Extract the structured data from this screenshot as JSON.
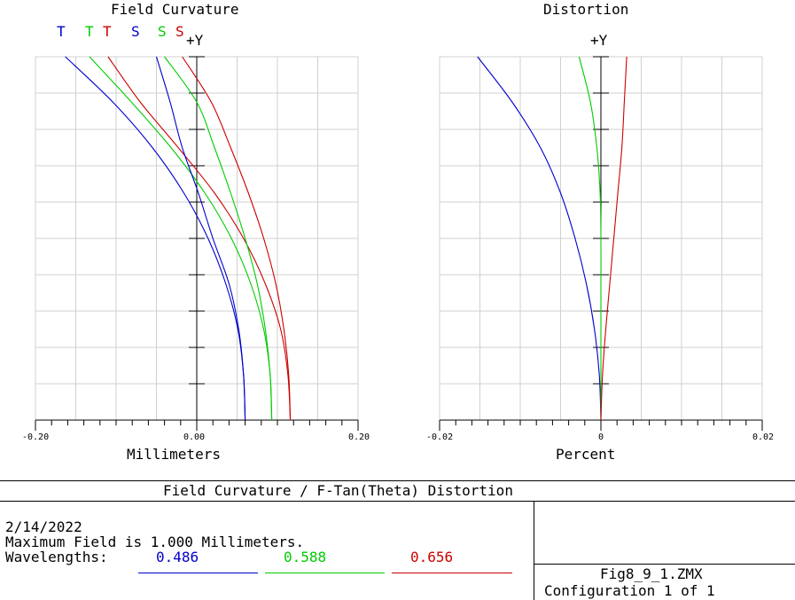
{
  "colors": {
    "blue": "#0000cc",
    "green": "#00cc00",
    "red": "#cc0000"
  },
  "legend": [
    {
      "text": "T",
      "color": "blue"
    },
    {
      "text": "T",
      "color": "green"
    },
    {
      "text": "T",
      "color": "red"
    },
    {
      "text": "S",
      "color": "blue"
    },
    {
      "text": "S",
      "color": "green"
    },
    {
      "text": "S",
      "color": "red"
    }
  ],
  "chart_data": [
    {
      "type": "line",
      "title": "Field Curvature",
      "xlabel": "Millimeters",
      "ylabel": "+Y",
      "xlim": [
        -0.2,
        0.2
      ],
      "ylim": [
        0,
        1
      ],
      "xticks": [
        "-0.20",
        "0.00",
        "0.20"
      ],
      "grid": true,
      "series": [
        {
          "name": "T",
          "color": "blue",
          "x": [
            0.06,
            0.058,
            0.051,
            0.036,
            0.014,
            -0.016,
            -0.055,
            -0.104,
            -0.163
          ],
          "y": [
            0.0,
            0.125,
            0.25,
            0.375,
            0.5,
            0.625,
            0.75,
            0.875,
            1.0
          ]
        },
        {
          "name": "T",
          "color": "green",
          "x": [
            0.093,
            0.091,
            0.083,
            0.067,
            0.043,
            0.01,
            -0.032,
            -0.081,
            -0.133
          ],
          "y": [
            0.0,
            0.125,
            0.25,
            0.375,
            0.5,
            0.625,
            0.75,
            0.875,
            1.0
          ]
        },
        {
          "name": "T",
          "color": "red",
          "x": [
            0.116,
            0.113,
            0.104,
            0.085,
            0.058,
            0.022,
            -0.023,
            -0.07,
            -0.11
          ],
          "y": [
            0.0,
            0.125,
            0.25,
            0.375,
            0.5,
            0.625,
            0.75,
            0.875,
            1.0
          ]
        },
        {
          "name": "S",
          "color": "blue",
          "x": [
            0.06,
            0.058,
            0.052,
            0.04,
            0.02,
            0.002,
            -0.018,
            -0.033,
            -0.05
          ],
          "y": [
            0.0,
            0.125,
            0.25,
            0.375,
            0.5,
            0.625,
            0.75,
            0.875,
            1.0
          ]
        },
        {
          "name": "S",
          "color": "green",
          "x": [
            0.093,
            0.091,
            0.085,
            0.075,
            0.06,
            0.042,
            0.022,
            0.0,
            -0.04
          ],
          "y": [
            0.0,
            0.125,
            0.25,
            0.375,
            0.5,
            0.625,
            0.75,
            0.875,
            1.0
          ]
        },
        {
          "name": "S",
          "color": "red",
          "x": [
            0.116,
            0.114,
            0.108,
            0.098,
            0.083,
            0.064,
            0.042,
            0.018,
            -0.018
          ],
          "y": [
            0.0,
            0.125,
            0.25,
            0.375,
            0.5,
            0.625,
            0.75,
            0.875,
            1.0
          ]
        }
      ]
    },
    {
      "type": "line",
      "title": "Distortion",
      "xlabel": "Percent",
      "ylabel": "+Y",
      "xlim": [
        -0.02,
        0.02
      ],
      "ylim": [
        0,
        1
      ],
      "xticks": [
        "-0.02",
        "0",
        "0.02"
      ],
      "grid": true,
      "series": [
        {
          "color": "blue",
          "x": [
            0.0,
            -0.0002,
            -0.0008,
            -0.0018,
            -0.0032,
            -0.005,
            -0.0075,
            -0.011,
            -0.0153
          ],
          "y": [
            0.0,
            0.125,
            0.25,
            0.375,
            0.5,
            0.625,
            0.75,
            0.875,
            1.0
          ]
        },
        {
          "color": "green",
          "x": [
            0.0,
            0.0,
            0.0,
            0.0,
            0.0,
            -0.0001,
            -0.0005,
            -0.0013,
            -0.0027
          ],
          "y": [
            0.0,
            0.125,
            0.25,
            0.375,
            0.5,
            0.625,
            0.75,
            0.875,
            1.0
          ]
        },
        {
          "color": "red",
          "x": [
            0.0,
            0.0002,
            0.0006,
            0.0011,
            0.0016,
            0.0021,
            0.0026,
            0.0029,
            0.0032
          ],
          "y": [
            0.0,
            0.125,
            0.25,
            0.375,
            0.5,
            0.625,
            0.75,
            0.875,
            1.0
          ]
        }
      ]
    }
  ],
  "footer": {
    "title": "Field Curvature / F-Tan(Theta) Distortion",
    "date": "2/14/2022",
    "max_field": "Maximum Field is 1.000 Millimeters.",
    "wavelengths_label": "Wavelengths:",
    "wavelengths": [
      {
        "value": "0.486",
        "color": "blue"
      },
      {
        "value": "0.588",
        "color": "green"
      },
      {
        "value": "0.656",
        "color": "red"
      }
    ],
    "file": "Fig8_9_1.ZMX",
    "configuration": "Configuration 1 of 1"
  }
}
